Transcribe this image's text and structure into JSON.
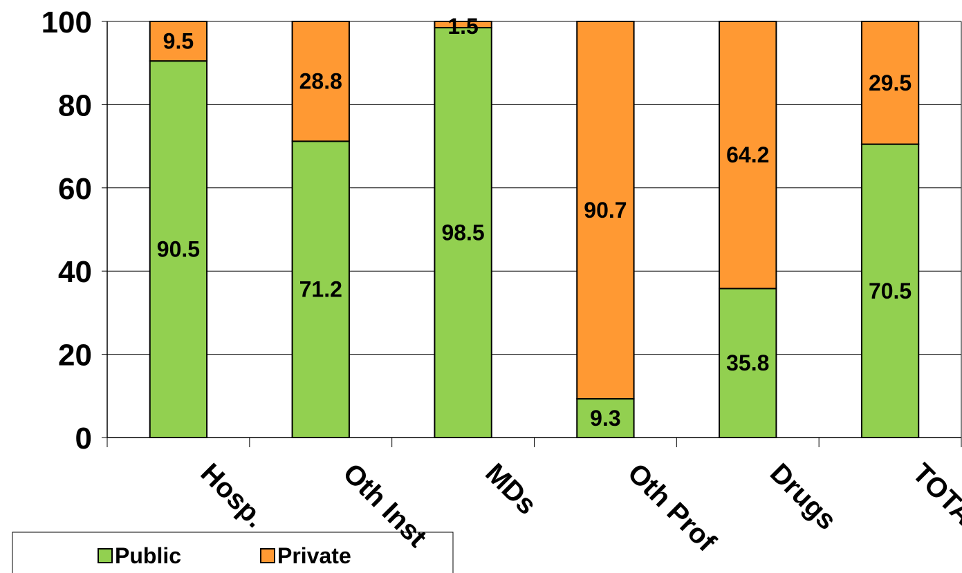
{
  "chart_data": {
    "type": "bar",
    "stacked": true,
    "categories": [
      "Hosp.",
      "Oth Inst",
      "MDs",
      "Oth Prof",
      "Drugs",
      "TOTAL"
    ],
    "series": [
      {
        "name": "Public",
        "values": [
          90.5,
          71.2,
          98.5,
          9.3,
          35.8,
          70.5
        ]
      },
      {
        "name": "Private",
        "values": [
          9.5,
          28.8,
          1.5,
          90.7,
          64.2,
          29.5
        ]
      }
    ],
    "ylim": [
      0,
      100
    ],
    "yticks": [
      "0",
      "20",
      "40",
      "60",
      "80",
      "100"
    ],
    "title": "",
    "xlabel": "",
    "ylabel": "",
    "grid": true,
    "legend_position": "bottom-left",
    "colors": {
      "Public": "#92d050",
      "Private": "#ff9933"
    }
  }
}
